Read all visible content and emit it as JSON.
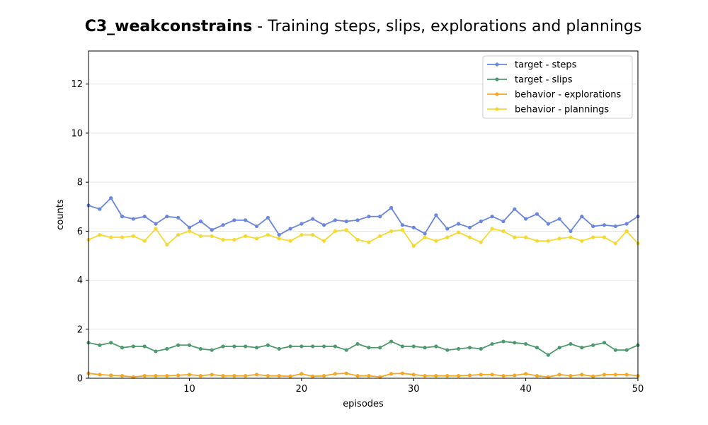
{
  "chart_data": {
    "type": "line",
    "title_bold": "C3_weakconstrains",
    "title_rest": " - Training steps, slips, explorations and plannings",
    "xlabel": "episodes",
    "ylabel": "counts",
    "xlim": [
      1,
      50
    ],
    "ylim": [
      0,
      13.35
    ],
    "xticks": [
      10,
      20,
      30,
      40,
      50
    ],
    "yticks": [
      0,
      2,
      4,
      6,
      8,
      10,
      12
    ],
    "grid": "horizontal",
    "legend_position": "top-right",
    "series": [
      {
        "name": "target - steps",
        "color": "#6b86e0",
        "values": [
          7.05,
          6.9,
          7.35,
          6.6,
          6.5,
          6.6,
          6.3,
          6.6,
          6.55,
          6.15,
          6.4,
          6.05,
          6.25,
          6.45,
          6.45,
          6.2,
          6.55,
          5.85,
          6.1,
          6.3,
          6.5,
          6.25,
          6.45,
          6.4,
          6.45,
          6.6,
          6.6,
          6.95,
          6.25,
          6.15,
          5.9,
          6.65,
          6.1,
          6.3,
          6.15,
          6.4,
          6.6,
          6.4,
          6.9,
          6.5,
          6.7,
          6.3,
          6.5,
          6.0,
          6.6,
          6.2,
          6.25,
          6.2,
          6.3,
          6.6
        ]
      },
      {
        "name": "target - slips",
        "color": "#4e9a6f",
        "values": [
          1.45,
          1.35,
          1.45,
          1.25,
          1.3,
          1.3,
          1.1,
          1.2,
          1.35,
          1.35,
          1.2,
          1.15,
          1.3,
          1.3,
          1.3,
          1.25,
          1.35,
          1.2,
          1.3,
          1.3,
          1.3,
          1.3,
          1.3,
          1.15,
          1.4,
          1.25,
          1.25,
          1.5,
          1.3,
          1.3,
          1.25,
          1.3,
          1.15,
          1.2,
          1.25,
          1.2,
          1.4,
          1.5,
          1.45,
          1.4,
          1.25,
          0.95,
          1.25,
          1.4,
          1.25,
          1.35,
          1.45,
          1.15,
          1.15,
          1.35
        ]
      },
      {
        "name": "behavior - explorations",
        "color": "#f5a623",
        "values": [
          0.2,
          0.15,
          0.12,
          0.1,
          0.05,
          0.1,
          0.1,
          0.1,
          0.12,
          0.15,
          0.1,
          0.15,
          0.1,
          0.1,
          0.1,
          0.15,
          0.1,
          0.1,
          0.08,
          0.18,
          0.08,
          0.1,
          0.18,
          0.2,
          0.1,
          0.1,
          0.05,
          0.18,
          0.2,
          0.15,
          0.1,
          0.1,
          0.1,
          0.1,
          0.12,
          0.15,
          0.15,
          0.1,
          0.12,
          0.18,
          0.1,
          0.05,
          0.15,
          0.1,
          0.15,
          0.08,
          0.15,
          0.15,
          0.15,
          0.1
        ]
      },
      {
        "name": "behavior - plannings",
        "color": "#f6d930",
        "values": [
          5.65,
          5.85,
          5.75,
          5.75,
          5.8,
          5.6,
          6.1,
          5.45,
          5.85,
          6.0,
          5.8,
          5.8,
          5.65,
          5.65,
          5.8,
          5.7,
          5.85,
          5.7,
          5.6,
          5.85,
          5.85,
          5.6,
          6.0,
          6.05,
          5.65,
          5.55,
          5.8,
          6.0,
          6.05,
          5.4,
          5.75,
          5.6,
          5.75,
          5.95,
          5.75,
          5.55,
          6.1,
          6.0,
          5.75,
          5.75,
          5.6,
          5.6,
          5.7,
          5.75,
          5.6,
          5.75,
          5.75,
          5.5,
          6.0,
          5.5
        ]
      }
    ]
  }
}
